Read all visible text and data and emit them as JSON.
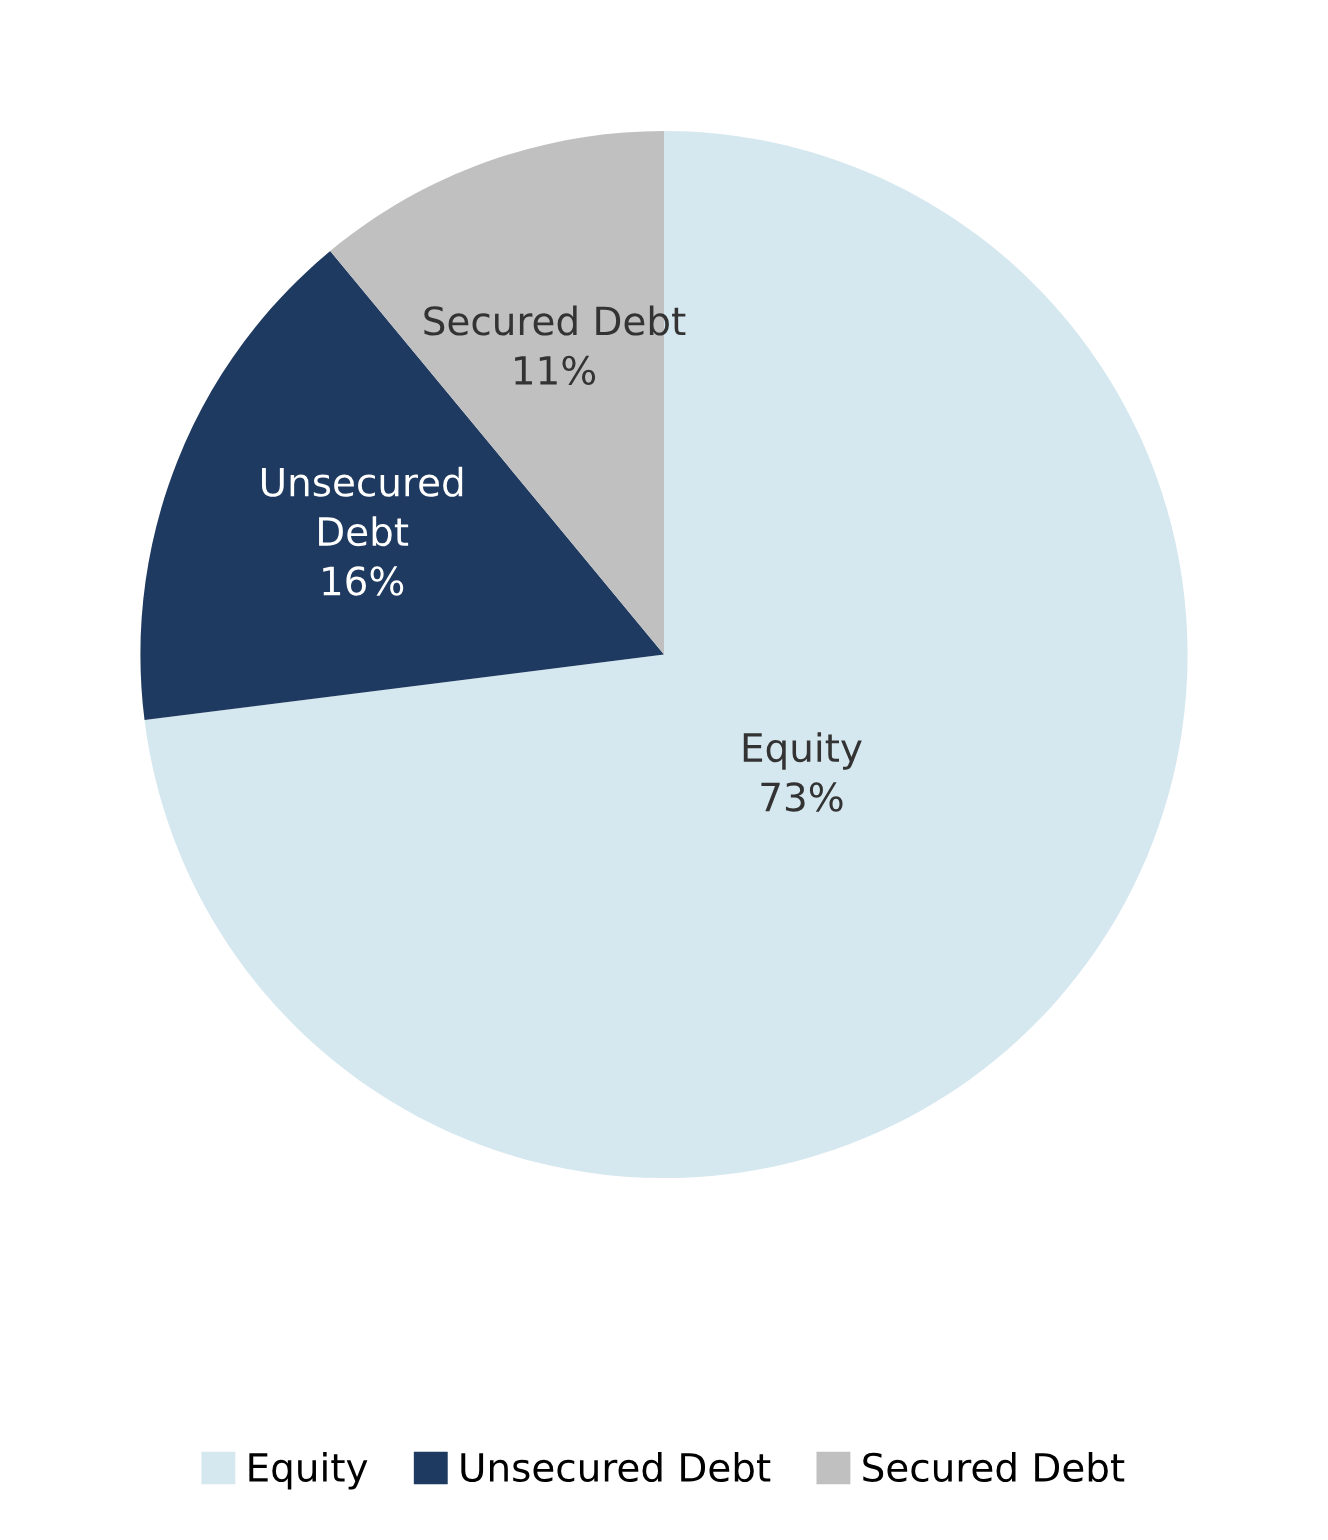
{
  "chart_data": {
    "type": "pie",
    "categories": [
      "Equity",
      "Unsecured Debt",
      "Secured Debt"
    ],
    "values": [
      73,
      16,
      11
    ],
    "value_labels": [
      "73%",
      "16%",
      "11%"
    ],
    "colors": [
      "#d5e7ef",
      "#1f3a60",
      "#c0c0c0"
    ],
    "legend": "bottom"
  }
}
